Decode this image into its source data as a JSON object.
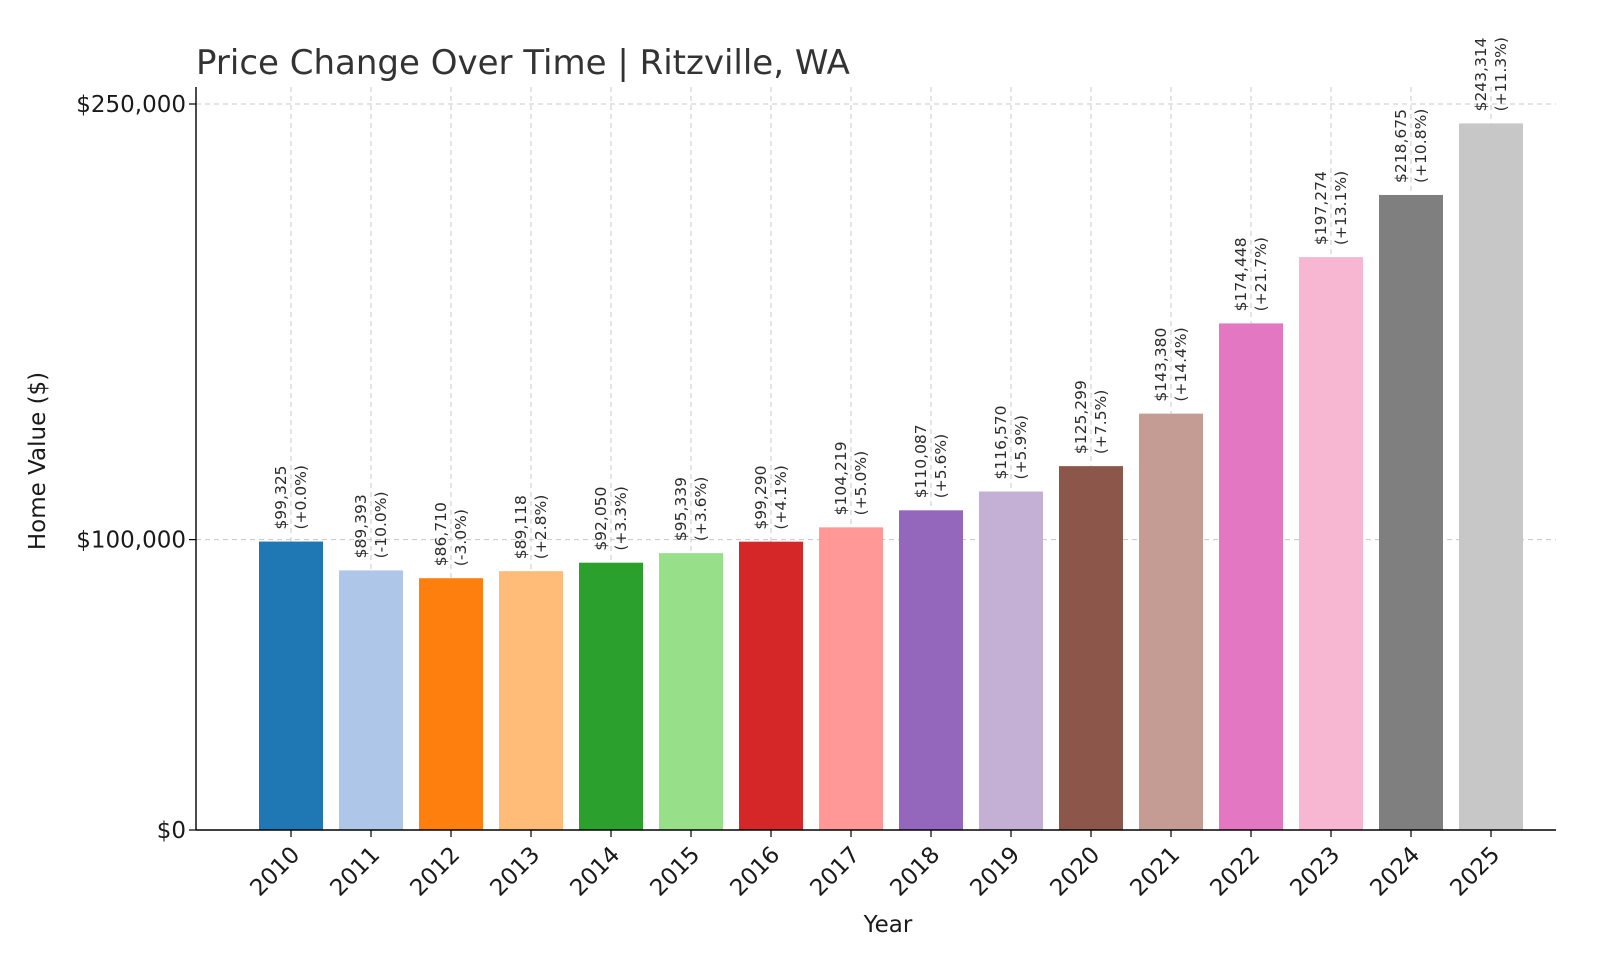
{
  "chart_data": {
    "type": "bar",
    "title": "Price Change Over Time | Ritzville, WA",
    "xlabel": "Year",
    "ylabel": "Home Value ($)",
    "ylim": [
      0,
      250000
    ],
    "yticks": [
      {
        "value": 0,
        "label": "$0"
      },
      {
        "value": 100000,
        "label": "$100,000"
      },
      {
        "value": 250000,
        "label": "$250,000"
      }
    ],
    "grid": true,
    "categories": [
      "2010",
      "2011",
      "2012",
      "2013",
      "2014",
      "2015",
      "2016",
      "2017",
      "2018",
      "2019",
      "2020",
      "2021",
      "2022",
      "2023",
      "2024",
      "2025"
    ],
    "values": [
      99325,
      89393,
      86710,
      89118,
      92050,
      95339,
      99290,
      104219,
      110087,
      116570,
      125299,
      143380,
      174448,
      197274,
      218675,
      243314
    ],
    "value_labels": [
      "$99,325",
      "$89,393",
      "$86,710",
      "$89,118",
      "$92,050",
      "$95,339",
      "$99,290",
      "$104,219",
      "$110,087",
      "$116,570",
      "$125,299",
      "$143,380",
      "$174,448",
      "$197,274",
      "$218,675",
      "$243,314"
    ],
    "change_labels": [
      "(+0.0%)",
      "(-10.0%)",
      "(-3.0%)",
      "(+2.8%)",
      "(+3.3%)",
      "(+3.6%)",
      "(+4.1%)",
      "(+5.0%)",
      "(+5.6%)",
      "(+5.9%)",
      "(+7.5%)",
      "(+14.4%)",
      "(+21.7%)",
      "(+13.1%)",
      "(+10.8%)",
      "(+11.3%)"
    ],
    "colors": [
      "#1f77b4",
      "#aec7e8",
      "#ff7f0e",
      "#ffbb78",
      "#2ca02c",
      "#98df8a",
      "#d62728",
      "#ff9896",
      "#9467bd",
      "#c5b0d5",
      "#8c564b",
      "#c49c94",
      "#e377c2",
      "#f7b6d2",
      "#7f7f7f",
      "#c7c7c7"
    ]
  }
}
